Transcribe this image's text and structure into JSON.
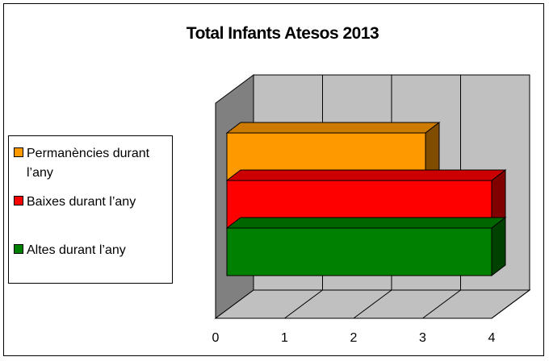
{
  "chart_data": {
    "type": "bar",
    "orientation": "horizontal",
    "style": "3d",
    "title": "Total Infants Atesos 2013",
    "categories": [
      ""
    ],
    "series": [
      {
        "name": "Altes durant l’any",
        "color": "#008000",
        "values": [
          4
        ]
      },
      {
        "name": "Baixes durant l’any",
        "color": "#ff0000",
        "values": [
          4
        ]
      },
      {
        "name": "Permanències durant l’any",
        "color": "#ff9900",
        "values": [
          3
        ]
      }
    ],
    "xlim": [
      0,
      4
    ],
    "x_ticks": [
      "0",
      "1",
      "2",
      "3",
      "4"
    ],
    "grid": true,
    "legend_position": "left"
  }
}
